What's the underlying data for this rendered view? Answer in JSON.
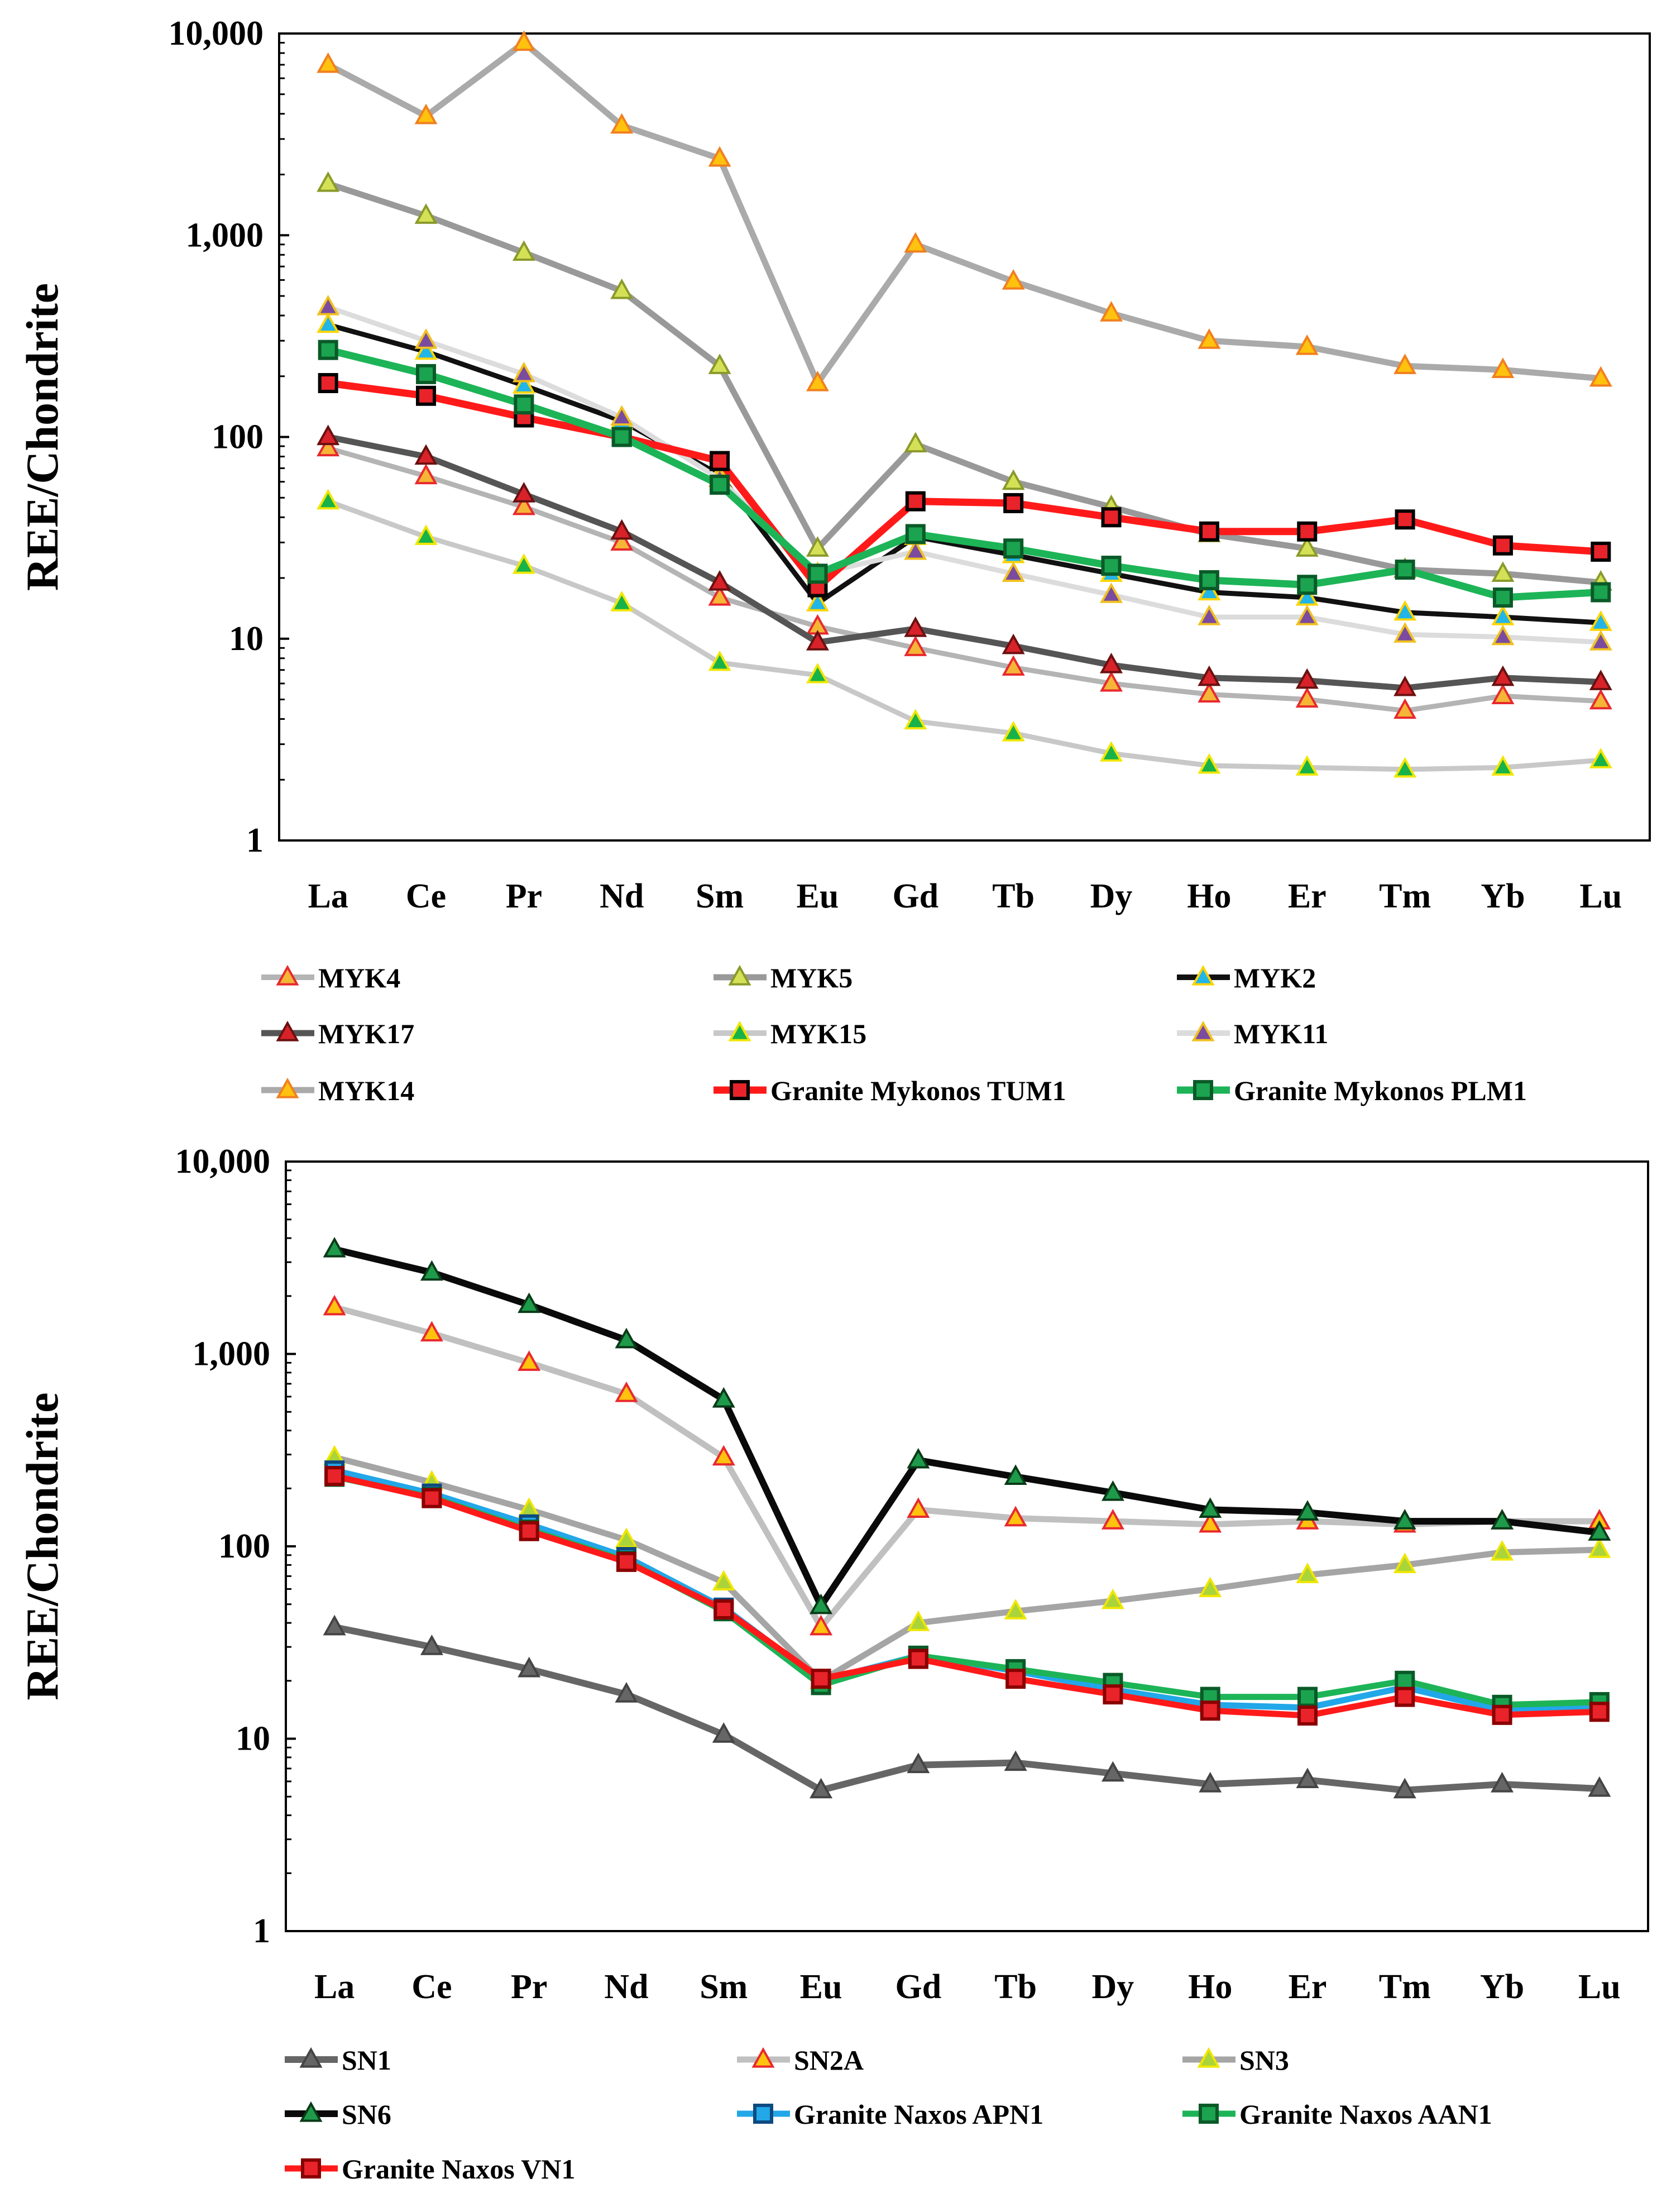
{
  "chart_data": [
    {
      "type": "line",
      "id": "mykonos",
      "ylabel": "REE/Chondrite",
      "yscale": "log",
      "ylim": [
        1,
        10000
      ],
      "yticks": [
        "10,000",
        "1,000",
        "100",
        "10",
        "1"
      ],
      "categories": [
        "La",
        "Ce",
        "Pr",
        "Nd",
        "Sm",
        "Eu",
        "Gd",
        "Tb",
        "Dy",
        "Ho",
        "Er",
        "Tm",
        "Yb",
        "Lu"
      ],
      "series": [
        {
          "name": "MYK4",
          "line": "#b4b4b4",
          "marker": "triangle",
          "mfill": "#f5b537",
          "mstroke": "#e8292e",
          "width": 9,
          "values": [
            88,
            64,
            45,
            30,
            16,
            11.5,
            9,
            7.2,
            6,
            5.3,
            5,
            4.4,
            5.2,
            4.9
          ]
        },
        {
          "name": "MYK5",
          "line": "#999999",
          "marker": "triangle",
          "mfill": "#d4e157",
          "mstroke": "#8a9a2a",
          "width": 11,
          "values": [
            1800,
            1250,
            820,
            530,
            225,
            28,
            92,
            60,
            45,
            33,
            28,
            22,
            21,
            19
          ]
        },
        {
          "name": "MYK2",
          "line": "#111111",
          "marker": "triangle",
          "mfill": "#22b5e8",
          "mstroke": "#ffd400",
          "width": 9,
          "values": [
            360,
            265,
            180,
            120,
            65,
            15,
            32,
            26,
            21,
            17,
            16,
            13.5,
            12.8,
            12
          ]
        },
        {
          "name": "MYK17",
          "line": "#555555",
          "marker": "triangle",
          "mfill": "#d8222a",
          "mstroke": "#6a1010",
          "width": 11,
          "values": [
            100,
            80,
            52,
            34,
            19,
            9.6,
            11.2,
            9.2,
            7.4,
            6.4,
            6.2,
            5.7,
            6.4,
            6.1
          ]
        },
        {
          "name": "MYK15",
          "line": "#c8c8c8",
          "marker": "triangle",
          "mfill": "#18b24a",
          "mstroke": "#f0e600",
          "width": 9,
          "values": [
            48,
            32,
            23,
            15,
            7.6,
            6.6,
            3.9,
            3.4,
            2.7,
            2.35,
            2.3,
            2.25,
            2.3,
            2.5
          ]
        },
        {
          "name": "MYK11",
          "line": "#dcdcdc",
          "marker": "triangle",
          "mfill": "#7b4ba0",
          "mstroke": "#f0c020",
          "width": 9,
          "values": [
            440,
            300,
            205,
            125,
            62,
            21,
            27,
            21,
            16.5,
            12.8,
            12.8,
            10.5,
            10.2,
            9.6
          ]
        },
        {
          "name": "MYK14",
          "line": "#aaaaaa",
          "marker": "triangle",
          "mfill": "#ffc20e",
          "mstroke": "#f08020",
          "width": 11,
          "values": [
            7000,
            3900,
            9000,
            3500,
            2400,
            185,
            900,
            590,
            410,
            300,
            280,
            225,
            215,
            195
          ]
        },
        {
          "name": "Granite Mykonos TUM1",
          "line": "#ff1a1a",
          "marker": "square",
          "mfill": "#e8232a",
          "mstroke": "#000000",
          "width": 13,
          "values": [
            185,
            160,
            125,
            100,
            76,
            18,
            48,
            47,
            40,
            34,
            34,
            39,
            29,
            27
          ]
        },
        {
          "name": "Granite Mykonos PLM1",
          "line": "#1db457",
          "marker": "square",
          "mfill": "#1ba34f",
          "mstroke": "#0a5a28",
          "width": 13,
          "values": [
            270,
            205,
            145,
            100,
            58,
            21,
            33,
            28,
            23,
            19.5,
            18.5,
            22,
            16,
            17
          ]
        }
      ]
    },
    {
      "type": "line",
      "id": "naxos",
      "ylabel": "REE/Chondrite",
      "yscale": "log",
      "ylim": [
        1,
        10000
      ],
      "yticks": [
        "10,000",
        "1,000",
        "100",
        "10",
        "1"
      ],
      "categories": [
        "La",
        "Ce",
        "Pr",
        "Nd",
        "Sm",
        "Eu",
        "Gd",
        "Tb",
        "Dy",
        "Ho",
        "Er",
        "Tm",
        "Yb",
        "Lu"
      ],
      "series": [
        {
          "name": "SN1",
          "line": "#666666",
          "marker": "triangle",
          "mfill": "#666666",
          "mstroke": "#444444",
          "width": 12,
          "values": [
            38,
            30,
            23,
            17,
            10.5,
            5.4,
            7.3,
            7.5,
            6.6,
            5.8,
            6.1,
            5.4,
            5.8,
            5.5
          ]
        },
        {
          "name": "SN2A",
          "line": "#c0c0c0",
          "marker": "triangle",
          "mfill": "#ffc20e",
          "mstroke": "#e8292e",
          "width": 11,
          "values": [
            1750,
            1280,
            900,
            620,
            290,
            38,
            155,
            140,
            135,
            130,
            135,
            130,
            135,
            135
          ]
        },
        {
          "name": "SN3",
          "line": "#a5a5a5",
          "marker": "triangle",
          "mfill": "#aad43a",
          "mstroke": "#f0e600",
          "width": 11,
          "values": [
            290,
            215,
            155,
            108,
            65,
            20,
            40,
            46,
            52,
            60,
            71,
            80,
            93,
            96
          ]
        },
        {
          "name": "SN6",
          "line": "#0a0a0a",
          "marker": "triangle",
          "mfill": "#1e9a4a",
          "mstroke": "#0a3a18",
          "width": 12,
          "values": [
            3500,
            2650,
            1800,
            1180,
            580,
            49,
            280,
            230,
            190,
            155,
            150,
            135,
            135,
            118
          ]
        },
        {
          "name": "Granite Naxos APN1",
          "line": "#22a7e8",
          "marker": "square",
          "mfill": "#22a7e8",
          "mstroke": "#0d4a80",
          "width": 11,
          "values": [
            248,
            188,
            130,
            88,
            48,
            20,
            27,
            22.5,
            18,
            15,
            14.5,
            18.5,
            14,
            14.5
          ]
        },
        {
          "name": "Granite Naxos AAN1",
          "line": "#1db457",
          "marker": "square",
          "mfill": "#1ba34f",
          "mstroke": "#0a5a28",
          "width": 11,
          "values": [
            230,
            180,
            122,
            84,
            46,
            19,
            27,
            23,
            19.5,
            16.5,
            16.5,
            20,
            15,
            15.5
          ]
        },
        {
          "name": "Granite Naxos VN1",
          "line": "#ff1a1a",
          "marker": "square",
          "mfill": "#e8232a",
          "mstroke": "#8a0000",
          "width": 11,
          "values": [
            232,
            178,
            120,
            83,
            47,
            20.5,
            26,
            20.5,
            17,
            14,
            13.2,
            16.5,
            13.3,
            13.8
          ]
        }
      ]
    }
  ]
}
